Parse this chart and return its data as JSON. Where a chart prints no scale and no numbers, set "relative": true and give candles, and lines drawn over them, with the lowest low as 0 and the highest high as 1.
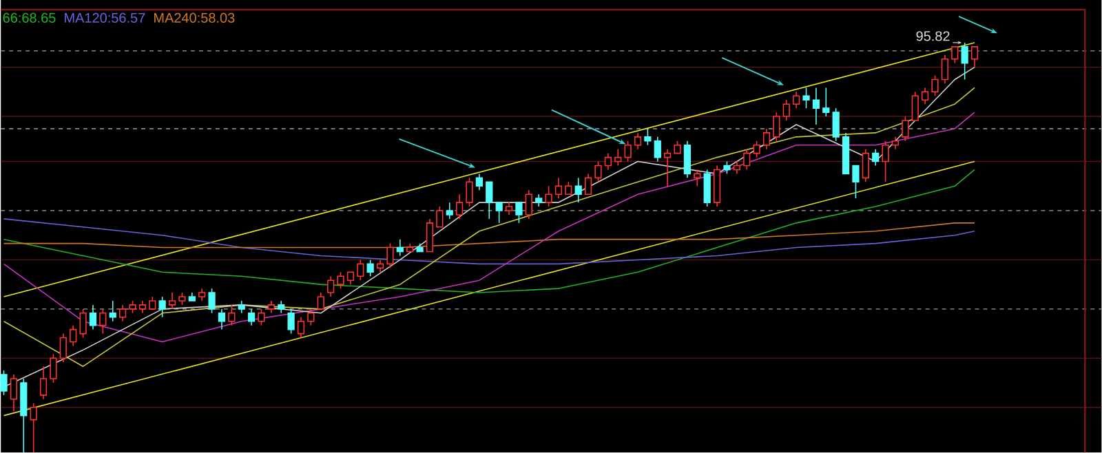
{
  "chart_data": {
    "type": "candlestick",
    "relative": true,
    "legend": "top left",
    "categories": [
      null,
      null,
      null,
      null,
      null,
      null,
      null,
      null,
      null,
      null,
      null,
      null,
      null,
      null,
      null,
      null,
      null,
      null,
      null,
      null,
      null,
      null,
      null,
      null,
      null,
      null,
      null,
      null,
      null,
      null,
      null,
      null,
      null,
      null,
      null,
      null,
      null,
      null,
      null,
      null,
      null,
      null,
      null,
      null,
      null,
      null,
      null,
      null,
      null,
      null,
      null,
      null,
      null,
      null,
      null,
      null,
      null,
      null,
      null,
      null,
      null,
      null,
      null,
      null,
      null,
      null,
      null,
      null,
      null,
      null,
      null,
      null,
      null,
      null,
      null,
      null,
      null,
      null,
      null,
      null,
      null,
      null,
      null,
      null,
      null,
      null,
      null,
      null,
      null,
      null,
      null,
      null,
      null,
      null,
      null,
      null,
      null,
      null,
      null
    ],
    "ohlc": [
      [
        0.19,
        0.2,
        0.14,
        0.15
      ],
      [
        0.13,
        0.19,
        0.1,
        0.18
      ],
      [
        0.17,
        0.18,
        0,
        0.09
      ],
      [
        0.08,
        0.12,
        0,
        0.11
      ],
      [
        0.14,
        0.21,
        0.13,
        0.18
      ],
      [
        0.18,
        0.24,
        0.17,
        0.23
      ],
      [
        0.23,
        0.29,
        0.22,
        0.28
      ],
      [
        0.27,
        0.31,
        0.26,
        0.3
      ],
      [
        0.29,
        0.35,
        0.28,
        0.34
      ],
      [
        0.34,
        0.36,
        0.3,
        0.31
      ],
      [
        0.31,
        0.35,
        0.29,
        0.34
      ],
      [
        0.34,
        0.37,
        0.32,
        0.33
      ],
      [
        0.33,
        0.36,
        0.32,
        0.35
      ],
      [
        0.35,
        0.37,
        0.34,
        0.36
      ],
      [
        0.35,
        0.37,
        0.34,
        0.36
      ],
      [
        0.35,
        0.38,
        0.35,
        0.37
      ],
      [
        0.37,
        0.38,
        0.33,
        0.35
      ],
      [
        0.36,
        0.39,
        0.35,
        0.37
      ],
      [
        0.37,
        0.39,
        0.36,
        0.38
      ],
      [
        0.38,
        0.39,
        0.37,
        0.37
      ],
      [
        0.38,
        0.4,
        0.37,
        0.39
      ],
      [
        0.39,
        0.4,
        0.34,
        0.35
      ],
      [
        0.34,
        0.35,
        0.3,
        0.32
      ],
      [
        0.32,
        0.36,
        0.31,
        0.34
      ],
      [
        0.36,
        0.37,
        0.34,
        0.35
      ],
      [
        0.34,
        0.35,
        0.31,
        0.32
      ],
      [
        0.32,
        0.35,
        0.31,
        0.34
      ],
      [
        0.35,
        0.37,
        0.34,
        0.36
      ],
      [
        0.36,
        0.37,
        0.34,
        0.35
      ],
      [
        0.34,
        0.35,
        0.29,
        0.3
      ],
      [
        0.29,
        0.33,
        0.28,
        0.32
      ],
      [
        0.32,
        0.35,
        0.31,
        0.34
      ],
      [
        0.35,
        0.39,
        0.35,
        0.38
      ],
      [
        0.39,
        0.43,
        0.38,
        0.42
      ],
      [
        0.41,
        0.44,
        0.4,
        0.43
      ],
      [
        0.42,
        0.44,
        0.41,
        0.44
      ],
      [
        0.43,
        0.47,
        0.42,
        0.46
      ],
      [
        0.46,
        0.47,
        0.43,
        0.44
      ],
      [
        0.45,
        0.47,
        0.44,
        0.46
      ],
      [
        0.46,
        0.51,
        0.45,
        0.5
      ],
      [
        0.5,
        0.52,
        0.48,
        0.49
      ],
      [
        0.49,
        0.51,
        0.49,
        0.5
      ],
      [
        0.5,
        0.51,
        0.49,
        0.49
      ],
      [
        0.49,
        0.57,
        0.49,
        0.56
      ],
      [
        0.55,
        0.6,
        0.55,
        0.59
      ],
      [
        0.59,
        0.61,
        0.57,
        0.58
      ],
      [
        0.58,
        0.63,
        0.57,
        0.61
      ],
      [
        0.61,
        0.67,
        0.6,
        0.66
      ],
      [
        0.67,
        0.68,
        0.64,
        0.65
      ],
      [
        0.66,
        0.66,
        0.57,
        0.61
      ],
      [
        0.61,
        0.61,
        0.56,
        0.59
      ],
      [
        0.59,
        0.61,
        0.58,
        0.6
      ],
      [
        0.61,
        0.61,
        0.56,
        0.58
      ],
      [
        0.58,
        0.64,
        0.57,
        0.63
      ],
      [
        0.62,
        0.63,
        0.6,
        0.61
      ],
      [
        0.61,
        0.65,
        0.6,
        0.63
      ],
      [
        0.63,
        0.67,
        0.62,
        0.65
      ],
      [
        0.63,
        0.66,
        0.63,
        0.65
      ],
      [
        0.65,
        0.67,
        0.61,
        0.63
      ],
      [
        0.63,
        0.68,
        0.63,
        0.67
      ],
      [
        0.67,
        0.71,
        0.66,
        0.7
      ],
      [
        0.7,
        0.73,
        0.69,
        0.72
      ],
      [
        0.71,
        0.74,
        0.7,
        0.72
      ],
      [
        0.72,
        0.76,
        0.71,
        0.75
      ],
      [
        0.75,
        0.78,
        0.74,
        0.77
      ],
      [
        0.77,
        0.79,
        0.75,
        0.76
      ],
      [
        0.76,
        0.77,
        0.71,
        0.72
      ],
      [
        0.72,
        0.74,
        0.65,
        0.73
      ],
      [
        0.73,
        0.76,
        0.73,
        0.75
      ],
      [
        0.75,
        0.76,
        0.67,
        0.68
      ],
      [
        0.67,
        0.69,
        0.65,
        0.68
      ],
      [
        0.68,
        0.69,
        0.6,
        0.61
      ],
      [
        0.61,
        0.7,
        0.6,
        0.69
      ],
      [
        0.7,
        0.71,
        0.68,
        0.69
      ],
      [
        0.69,
        0.71,
        0.68,
        0.7
      ],
      [
        0.7,
        0.74,
        0.69,
        0.73
      ],
      [
        0.73,
        0.76,
        0.72,
        0.75
      ],
      [
        0.75,
        0.79,
        0.74,
        0.78
      ],
      [
        0.77,
        0.83,
        0.76,
        0.82
      ],
      [
        0.82,
        0.86,
        0.81,
        0.85
      ],
      [
        0.85,
        0.88,
        0.84,
        0.87
      ],
      [
        0.87,
        0.89,
        0.84,
        0.86
      ],
      [
        0.86,
        0.89,
        0.8,
        0.84
      ],
      [
        0.84,
        0.89,
        0.82,
        0.83
      ],
      [
        0.83,
        0.84,
        0.76,
        0.77
      ],
      [
        0.77,
        0.78,
        0.68,
        0.68
      ],
      [
        0.7,
        0.7,
        0.62,
        0.66
      ],
      [
        0.67,
        0.74,
        0.66,
        0.73
      ],
      [
        0.73,
        0.74,
        0.7,
        0.71
      ],
      [
        0.71,
        0.76,
        0.66,
        0.75
      ],
      [
        0.75,
        0.77,
        0.74,
        0.76
      ],
      [
        0.77,
        0.82,
        0.76,
        0.81
      ],
      [
        0.81,
        0.88,
        0.81,
        0.87
      ],
      [
        0.86,
        0.89,
        0.85,
        0.88
      ],
      [
        0.88,
        0.92,
        0.87,
        0.91
      ],
      [
        0.91,
        0.97,
        0.9,
        0.96
      ],
      [
        0.96,
        0.99,
        0.95,
        0.99
      ],
      [
        0.99,
        1,
        0.91,
        0.95
      ],
      [
        0.96,
        0.99,
        0.94,
        0.99
      ]
    ],
    "series": [
      {
        "type": "line",
        "color": "#e6e61e",
        "values": [
          0.38,
          null,
          null,
          null,
          null,
          null,
          null,
          null,
          null,
          null,
          null,
          null,
          null,
          null,
          null,
          null,
          null,
          null,
          null,
          null,
          null,
          null,
          null,
          null,
          null,
          null,
          null,
          null,
          null,
          null,
          null,
          null,
          null,
          null,
          null,
          null,
          null,
          null,
          null,
          null,
          null,
          null,
          null,
          null,
          null,
          null,
          null,
          null,
          null,
          null,
          null,
          null,
          null,
          null,
          null,
          null,
          null,
          null,
          null,
          null,
          null,
          null,
          null,
          null,
          null,
          null,
          null,
          null,
          null,
          null,
          null,
          null,
          null,
          null,
          null,
          null,
          null,
          null,
          null,
          null,
          null,
          null,
          null,
          null,
          null,
          null,
          null,
          null,
          null,
          null,
          null,
          null,
          null,
          null,
          null,
          null,
          null,
          null,
          1.0
        ]
      },
      {
        "type": "line",
        "color": "#e6e61e",
        "values": [
          0.09,
          null,
          null,
          null,
          null,
          null,
          null,
          null,
          null,
          null,
          null,
          null,
          null,
          null,
          null,
          null,
          null,
          null,
          null,
          null,
          null,
          null,
          null,
          null,
          null,
          null,
          null,
          null,
          null,
          null,
          null,
          null,
          null,
          null,
          null,
          null,
          null,
          null,
          null,
          null,
          null,
          null,
          null,
          null,
          null,
          null,
          null,
          null,
          null,
          null,
          null,
          null,
          null,
          null,
          null,
          null,
          null,
          null,
          null,
          null,
          null,
          null,
          null,
          null,
          null,
          null,
          null,
          null,
          null,
          null,
          null,
          null,
          null,
          null,
          null,
          null,
          null,
          null,
          null,
          null,
          null,
          null,
          null,
          null,
          null,
          null,
          null,
          null,
          null,
          null,
          null,
          null,
          null,
          null,
          null,
          null,
          null,
          null,
          0.71
        ]
      },
      {
        "type": "line",
        "name": "66:68.65",
        "color": "#22b422",
        "values": [
          0.52,
          null,
          null,
          null,
          null,
          null,
          null,
          null,
          0.48,
          null,
          null,
          null,
          null,
          null,
          null,
          null,
          0.44,
          null,
          null,
          null,
          null,
          null,
          null,
          null,
          0.43,
          null,
          null,
          null,
          null,
          null,
          null,
          null,
          0.41,
          null,
          null,
          null,
          null,
          null,
          null,
          null,
          0.4,
          null,
          null,
          null,
          null,
          null,
          null,
          null,
          0.39,
          null,
          null,
          null,
          null,
          null,
          null,
          null,
          0.4,
          null,
          null,
          null,
          null,
          null,
          null,
          null,
          0.44,
          null,
          null,
          null,
          null,
          null,
          null,
          null,
          0.5,
          null,
          null,
          null,
          null,
          null,
          null,
          null,
          0.56,
          null,
          null,
          null,
          null,
          null,
          null,
          null,
          0.6,
          null,
          null,
          null,
          null,
          null,
          null,
          null,
          0.65,
          null,
          0.69
        ]
      },
      {
        "type": "line",
        "name": "MA120:56.57",
        "color": "#6464dc",
        "values": [
          0.57,
          null,
          null,
          null,
          null,
          null,
          null,
          null,
          0.55,
          null,
          null,
          null,
          null,
          null,
          null,
          null,
          0.53,
          null,
          null,
          null,
          null,
          null,
          null,
          null,
          0.5,
          null,
          null,
          null,
          null,
          null,
          null,
          null,
          0.48,
          null,
          null,
          null,
          null,
          null,
          null,
          null,
          0.47,
          null,
          null,
          null,
          null,
          null,
          null,
          null,
          0.46,
          null,
          null,
          null,
          null,
          null,
          null,
          null,
          0.46,
          null,
          null,
          null,
          null,
          null,
          null,
          null,
          0.47,
          null,
          null,
          null,
          null,
          null,
          null,
          null,
          0.48,
          null,
          null,
          null,
          null,
          null,
          null,
          null,
          0.5,
          null,
          null,
          null,
          null,
          null,
          null,
          null,
          0.51,
          null,
          null,
          null,
          null,
          null,
          null,
          null,
          0.53,
          null,
          0.54
        ]
      },
      {
        "type": "line",
        "name": "MA240:58.03",
        "color": "#d2781e",
        "values": [
          0.51,
          null,
          null,
          null,
          null,
          null,
          null,
          null,
          0.51,
          null,
          null,
          null,
          null,
          null,
          null,
          null,
          0.5,
          null,
          null,
          null,
          null,
          null,
          null,
          null,
          0.5,
          null,
          null,
          null,
          null,
          null,
          null,
          null,
          0.5,
          null,
          null,
          null,
          null,
          null,
          null,
          null,
          0.5,
          null,
          null,
          null,
          null,
          null,
          null,
          null,
          0.51,
          null,
          null,
          null,
          null,
          null,
          null,
          null,
          0.52,
          null,
          null,
          null,
          null,
          null,
          null,
          null,
          0.52,
          null,
          null,
          null,
          null,
          null,
          null,
          null,
          0.52,
          null,
          null,
          null,
          null,
          null,
          null,
          null,
          0.53,
          null,
          null,
          null,
          null,
          null,
          null,
          null,
          0.54,
          null,
          null,
          null,
          null,
          null,
          null,
          null,
          0.56,
          null,
          0.56
        ]
      },
      {
        "type": "line",
        "color": "#c832c8",
        "values": [
          0.46,
          null,
          null,
          null,
          null,
          null,
          null,
          null,
          0.32,
          null,
          null,
          null,
          null,
          null,
          null,
          null,
          0.27,
          null,
          null,
          null,
          null,
          null,
          null,
          null,
          0.32,
          null,
          null,
          null,
          null,
          null,
          null,
          null,
          0.35,
          null,
          null,
          null,
          null,
          null,
          null,
          null,
          0.38,
          null,
          null,
          null,
          null,
          null,
          null,
          null,
          0.42,
          null,
          null,
          null,
          null,
          null,
          null,
          null,
          0.54,
          null,
          null,
          null,
          null,
          null,
          null,
          null,
          0.63,
          null,
          null,
          null,
          null,
          null,
          null,
          null,
          0.68,
          null,
          null,
          null,
          null,
          null,
          null,
          null,
          0.75,
          null,
          null,
          null,
          null,
          null,
          null,
          null,
          0.75,
          null,
          null,
          null,
          null,
          null,
          null,
          null,
          0.79,
          null,
          0.83
        ]
      },
      {
        "type": "line",
        "color": "#c8c832",
        "values": [
          0.32,
          null,
          null,
          null,
          null,
          null,
          null,
          null,
          0.21,
          null,
          null,
          null,
          null,
          null,
          null,
          null,
          0.34,
          null,
          null,
          null,
          null,
          null,
          null,
          null,
          0.36,
          null,
          null,
          null,
          null,
          null,
          null,
          null,
          0.35,
          null,
          null,
          null,
          null,
          null,
          null,
          null,
          0.41,
          null,
          null,
          null,
          null,
          null,
          null,
          null,
          0.54,
          null,
          null,
          null,
          null,
          null,
          null,
          null,
          0.6,
          null,
          null,
          null,
          null,
          null,
          null,
          null,
          0.66,
          null,
          null,
          null,
          null,
          null,
          null,
          null,
          0.72,
          null,
          null,
          null,
          null,
          null,
          null,
          null,
          0.77,
          null,
          null,
          null,
          null,
          null,
          null,
          null,
          0.78,
          null,
          null,
          null,
          null,
          null,
          null,
          null,
          0.85,
          null,
          0.89
        ]
      },
      {
        "type": "line",
        "color": "#d2d2d2",
        "values": [
          0.16,
          null,
          null,
          null,
          null,
          null,
          null,
          null,
          0.25,
          null,
          null,
          null,
          null,
          null,
          null,
          null,
          0.35,
          null,
          null,
          null,
          null,
          null,
          null,
          null,
          0.36,
          null,
          null,
          null,
          null,
          null,
          null,
          null,
          0.34,
          null,
          null,
          null,
          null,
          null,
          null,
          null,
          0.47,
          null,
          null,
          null,
          null,
          null,
          null,
          null,
          0.61,
          null,
          null,
          null,
          null,
          null,
          null,
          null,
          0.61,
          null,
          null,
          null,
          null,
          null,
          null,
          null,
          0.71,
          null,
          null,
          null,
          null,
          null,
          null,
          null,
          0.68,
          null,
          null,
          null,
          null,
          null,
          null,
          null,
          0.8,
          null,
          null,
          null,
          null,
          null,
          null,
          null,
          0.71,
          null,
          null,
          null,
          null,
          null,
          null,
          null,
          0.91,
          null,
          0.94
        ]
      }
    ],
    "ref_lines": [
      {
        "axis": "y",
        "value": 0.98,
        "color": "#a0a0a0",
        "line_style": "dashed"
      },
      {
        "axis": "y",
        "value": 0.79,
        "color": "#a0a0a0",
        "line_style": "dashed"
      },
      {
        "axis": "y",
        "value": 0.59,
        "color": "#a0a0a0",
        "line_style": "dashed"
      },
      {
        "axis": "y",
        "value": 0.35,
        "color": "#a0a0a0",
        "line_style": "dashed"
      },
      {
        "axis": "y",
        "value": 0.94,
        "color": "#5a1414",
        "line_style": "solid"
      },
      {
        "axis": "y",
        "value": 0.82,
        "color": "#5a1414",
        "line_style": "solid"
      },
      {
        "axis": "y",
        "value": 0.71,
        "color": "#5a1414",
        "line_style": "solid"
      },
      {
        "axis": "y",
        "value": 0.47,
        "color": "#5a1414",
        "line_style": "solid"
      },
      {
        "axis": "y",
        "value": 0.23,
        "color": "#5a1414",
        "line_style": "solid"
      },
      {
        "axis": "y",
        "value": 0.11,
        "color": "#5a1414",
        "line_style": "solid"
      }
    ],
    "annotations": [
      "95.82"
    ]
  }
}
